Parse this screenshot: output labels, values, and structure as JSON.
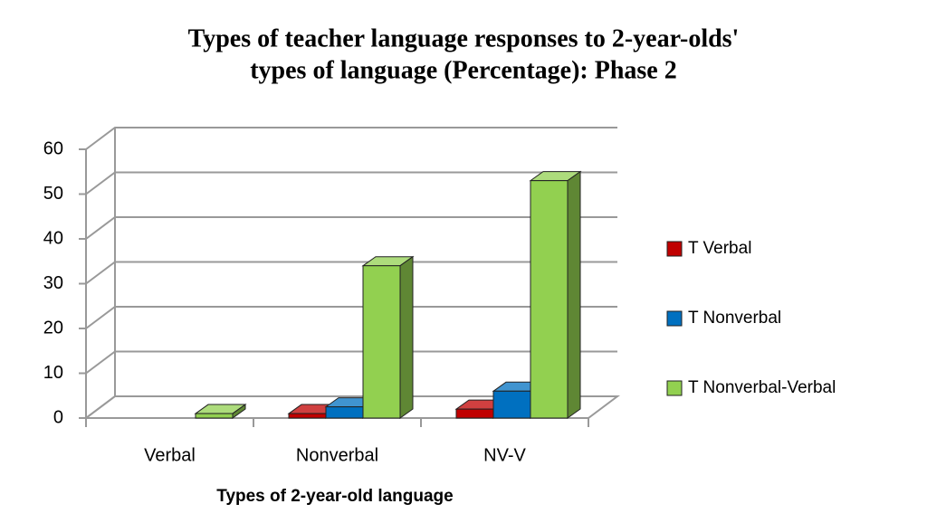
{
  "chart_data": {
    "type": "bar3d",
    "title": [
      "Types of teacher language responses to 2-year-olds'",
      "types of language (Percentage): Phase 2"
    ],
    "x_label": "Types of 2-year-old language",
    "categories": [
      "Verbal",
      "Nonverbal",
      "NV-V"
    ],
    "series": [
      {
        "name": "T Verbal",
        "color": "#c00000",
        "values": [
          0,
          1,
          2
        ]
      },
      {
        "name": "T Nonverbal",
        "color": "#0070c0",
        "values": [
          0,
          2.5,
          6
        ]
      },
      {
        "name": "T Nonverbal-Verbal",
        "color": "#92d050",
        "values": [
          1,
          34,
          53
        ]
      }
    ],
    "ylim": [
      0,
      60
    ],
    "yticks": [
      0,
      10,
      20,
      30,
      40,
      50,
      60
    ],
    "grid": true,
    "legend": "right"
  }
}
